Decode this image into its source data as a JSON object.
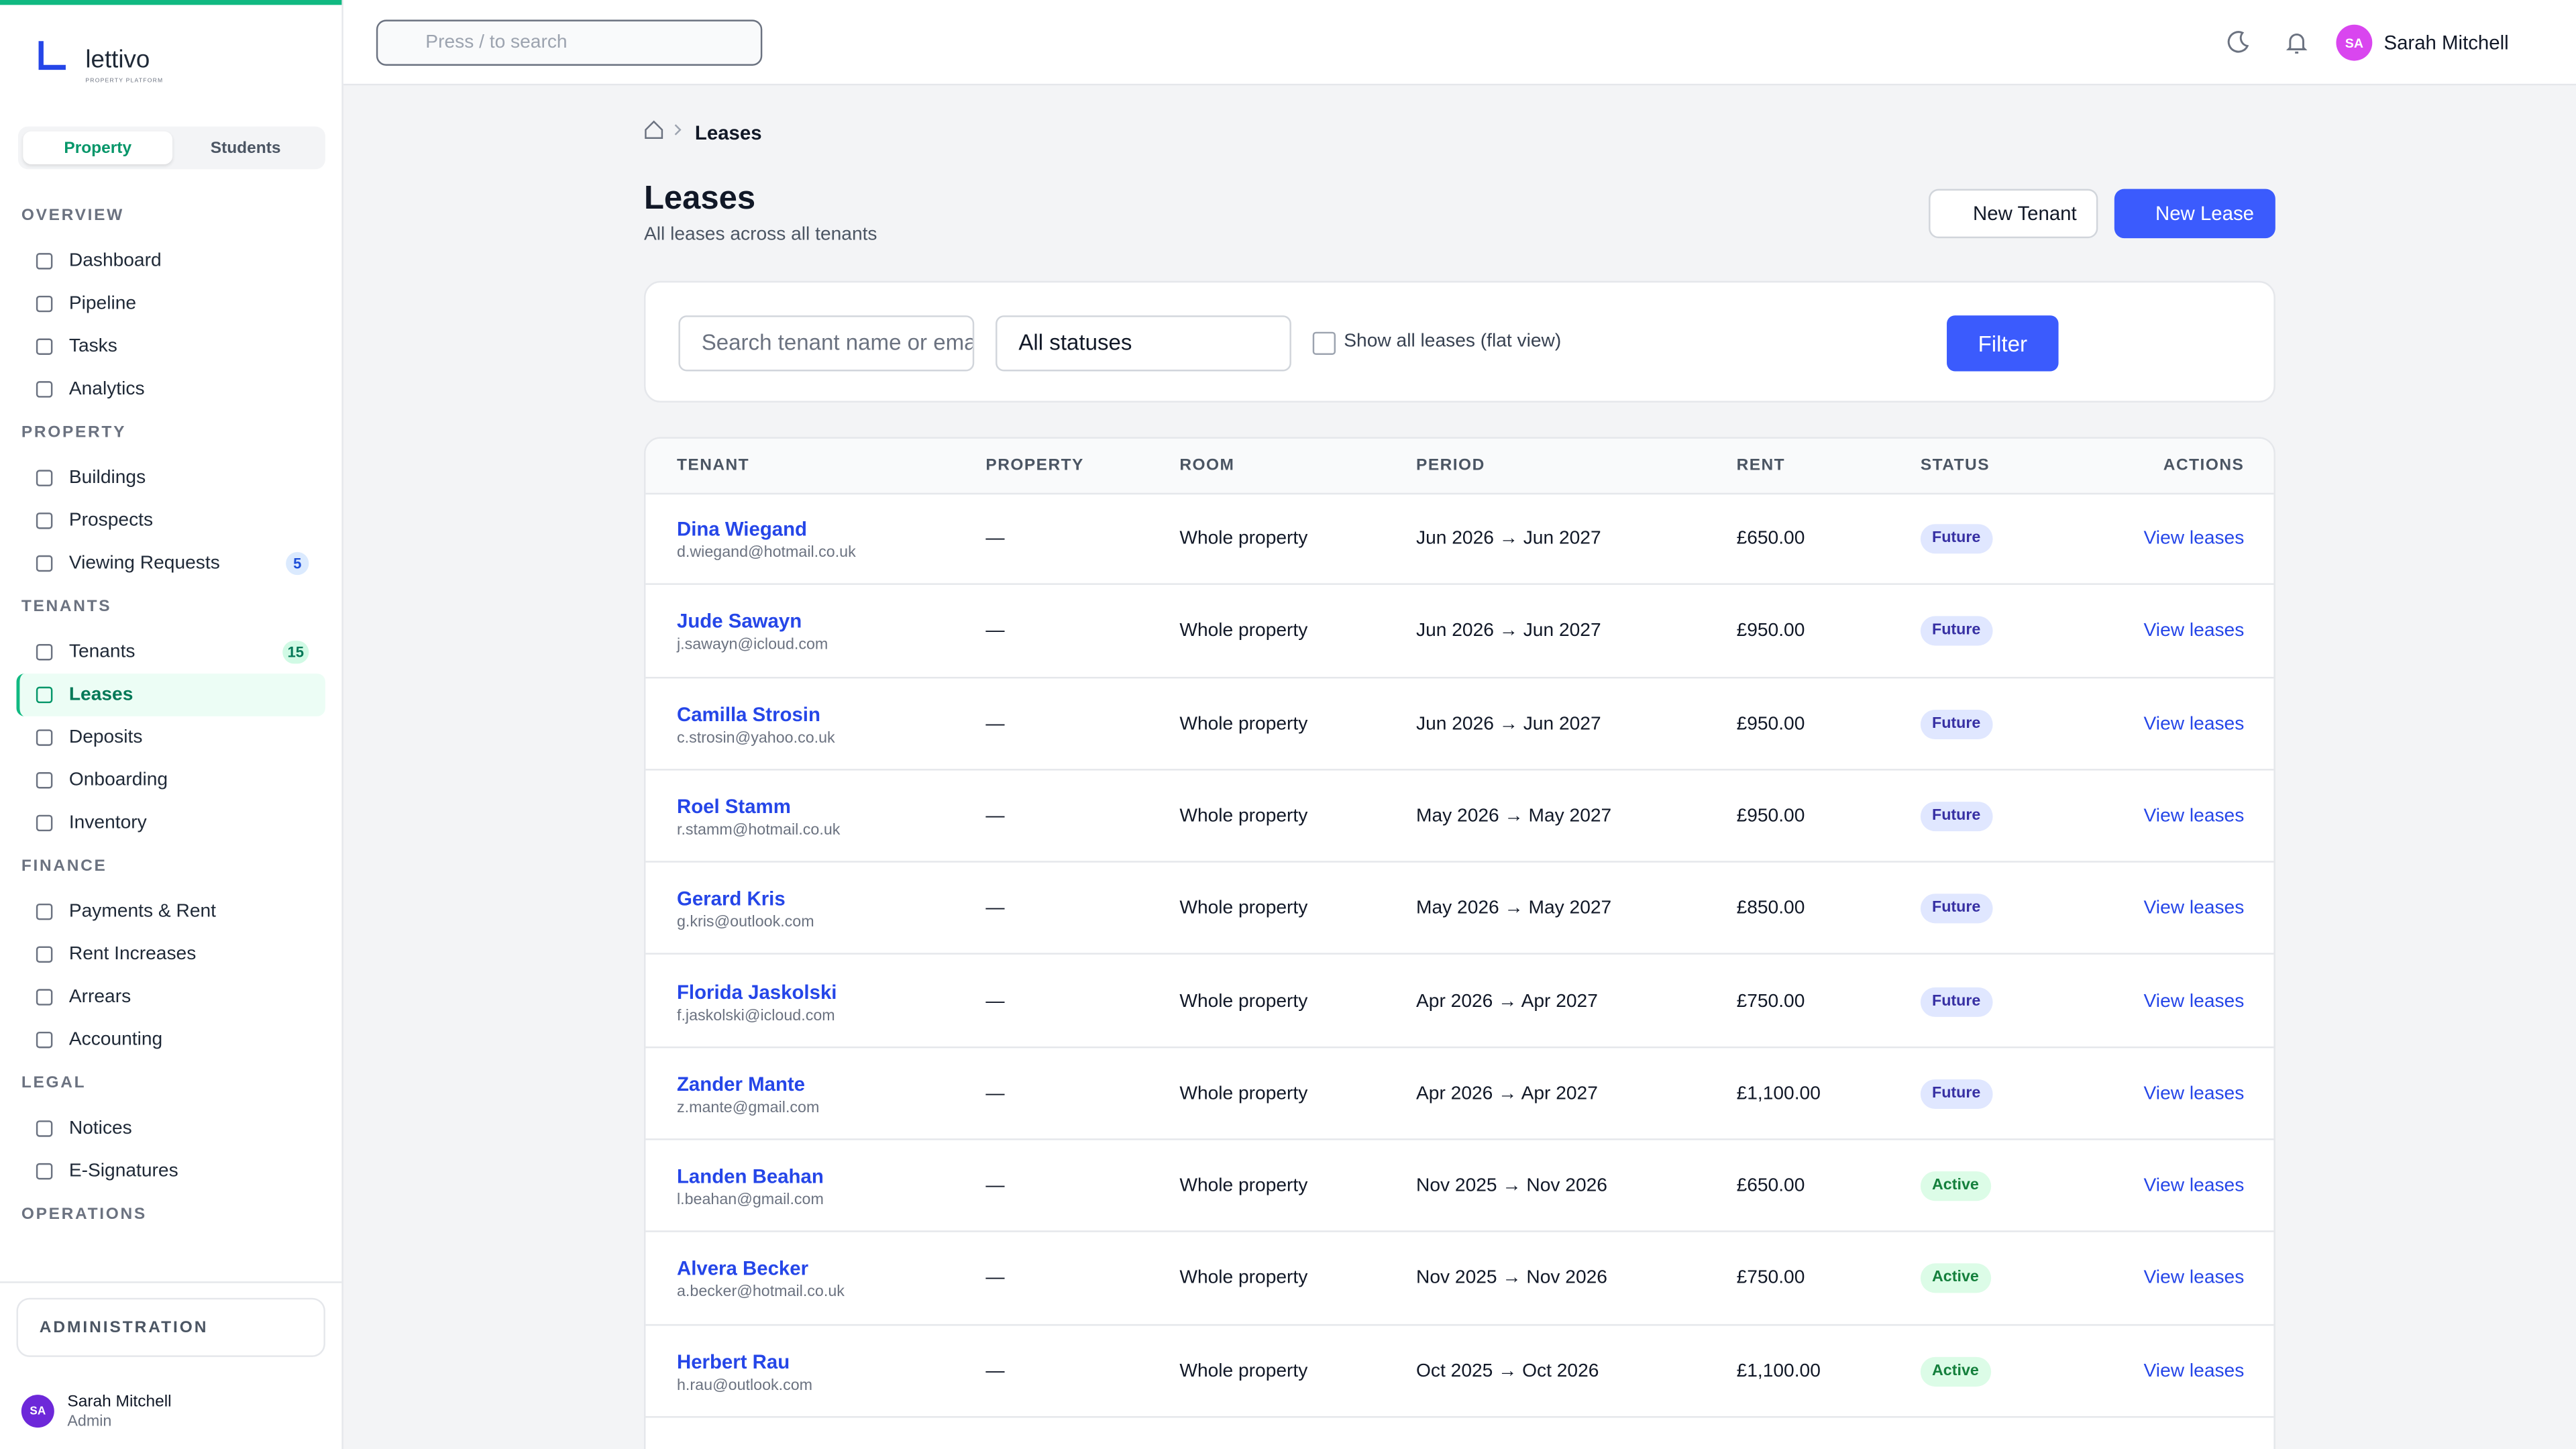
{
  "brand": {
    "name": "lettivo",
    "tagline": "PROPERTY PLATFORM"
  },
  "tabs": [
    "Property",
    "Students"
  ],
  "nav": [
    {
      "heading": "OVERVIEW",
      "items": [
        {
          "label": "Dashboard"
        },
        {
          "label": "Pipeline"
        },
        {
          "label": "Tasks"
        },
        {
          "label": "Analytics"
        }
      ]
    },
    {
      "heading": "PROPERTY",
      "items": [
        {
          "label": "Buildings"
        },
        {
          "label": "Prospects"
        },
        {
          "label": "Viewing Requests",
          "badge": 5
        }
      ]
    },
    {
      "heading": "TENANTS",
      "items": [
        {
          "label": "Tenants",
          "badge": 15
        },
        {
          "label": "Leases",
          "active": true
        },
        {
          "label": "Deposits"
        },
        {
          "label": "Onboarding"
        },
        {
          "label": "Inventory"
        }
      ]
    },
    {
      "heading": "FINANCE",
      "items": [
        {
          "label": "Payments & Rent"
        },
        {
          "label": "Rent Increases"
        },
        {
          "label": "Arrears"
        },
        {
          "label": "Accounting"
        }
      ]
    },
    {
      "heading": "LEGAL",
      "items": [
        {
          "label": "Notices"
        },
        {
          "label": "E-Signatures"
        }
      ]
    },
    {
      "heading": "OPERATIONS",
      "items": []
    }
  ],
  "admin": "ADMINISTRATION",
  "sidebar_user": {
    "initials": "SA",
    "name": "Sarah Mitchell",
    "role": "Admin"
  },
  "topbar": {
    "search": "Press / to search",
    "initials": "SA",
    "name": "Sarah Mitchell"
  },
  "breadcrumb": "Leases",
  "header": {
    "title": "Leases",
    "subtitle": "All leases across all tenants",
    "buttons": [
      "New Tenant",
      "New Lease"
    ]
  },
  "filters": {
    "search": "Search tenant name or email",
    "status": "All statuses",
    "flat": "Show all leases (flat view)",
    "button": "Filter"
  },
  "table": {
    "columns": [
      "TENANT",
      "PROPERTY",
      "ROOM",
      "PERIOD",
      "RENT",
      "STATUS",
      "ACTIONS"
    ],
    "rows": [
      {
        "name": "Dina Wiegand",
        "email": "d.wiegand@hotmail.co.uk",
        "property": "—",
        "room": "Whole property",
        "period": "Jun 2026 → Jun 2027",
        "rent": "£650.00",
        "status": "Future",
        "action": "View leases"
      },
      {
        "name": "Jude Sawayn",
        "email": "j.sawayn@icloud.com",
        "property": "—",
        "room": "Whole property",
        "period": "Jun 2026 → Jun 2027",
        "rent": "£950.00",
        "status": "Future",
        "action": "View leases"
      },
      {
        "name": "Camilla Strosin",
        "email": "c.strosin@yahoo.co.uk",
        "property": "—",
        "room": "Whole property",
        "period": "Jun 2026 → Jun 2027",
        "rent": "£950.00",
        "status": "Future",
        "action": "View leases"
      },
      {
        "name": "Roel Stamm",
        "email": "r.stamm@hotmail.co.uk",
        "property": "—",
        "room": "Whole property",
        "period": "May 2026 → May 2027",
        "rent": "£950.00",
        "status": "Future",
        "action": "View leases"
      },
      {
        "name": "Gerard Kris",
        "email": "g.kris@outlook.com",
        "property": "—",
        "room": "Whole property",
        "period": "May 2026 → May 2027",
        "rent": "£850.00",
        "status": "Future",
        "action": "View leases"
      },
      {
        "name": "Florida Jaskolski",
        "email": "f.jaskolski@icloud.com",
        "property": "—",
        "room": "Whole property",
        "period": "Apr 2026 → Apr 2027",
        "rent": "£750.00",
        "status": "Future",
        "action": "View leases"
      },
      {
        "name": "Zander Mante",
        "email": "z.mante@gmail.com",
        "property": "—",
        "room": "Whole property",
        "period": "Apr 2026 → Apr 2027",
        "rent": "£1,100.00",
        "status": "Future",
        "action": "View leases"
      },
      {
        "name": "Landen Beahan",
        "email": "l.beahan@gmail.com",
        "property": "—",
        "room": "Whole property",
        "period": "Nov 2025 → Nov 2026",
        "rent": "£650.00",
        "status": "Active",
        "action": "View leases"
      },
      {
        "name": "Alvera Becker",
        "email": "a.becker@hotmail.co.uk",
        "property": "—",
        "room": "Whole property",
        "period": "Nov 2025 → Nov 2026",
        "rent": "£750.00",
        "status": "Active",
        "action": "View leases"
      },
      {
        "name": "Herbert Rau",
        "email": "h.rau@outlook.com",
        "property": "—",
        "room": "Whole property",
        "period": "Oct 2025 → Oct 2026",
        "rent": "£1,100.00",
        "status": "Active",
        "action": "View leases"
      }
    ]
  }
}
